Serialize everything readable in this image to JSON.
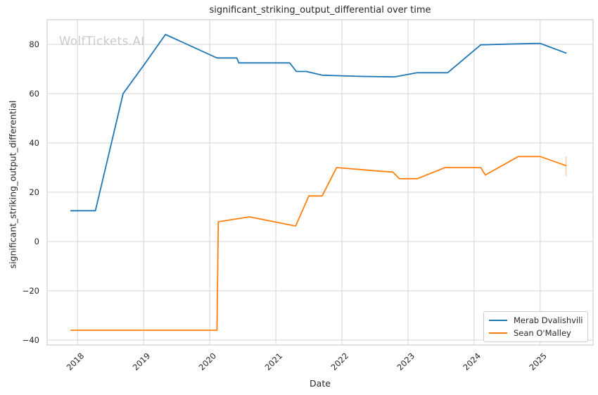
{
  "watermark": "WolfTickets.AI",
  "colors": {
    "grid": "#d5d5d5",
    "spine": "#cfcfcf",
    "text": "#262626",
    "watermark": "#c9c9c9",
    "legend_border": "#cccccc"
  },
  "chart_data": {
    "type": "line",
    "title": "significant_striking_output_differential over time",
    "xlabel": "Date",
    "ylabel": "significant_striking_output_differential",
    "x_tick_values": [
      2018,
      2019,
      2020,
      2021,
      2022,
      2023,
      2024,
      2025
    ],
    "x_tick_labels": [
      "2018",
      "2019",
      "2020",
      "2021",
      "2022",
      "2023",
      "2024",
      "2025"
    ],
    "y_tick_values": [
      -40,
      -20,
      0,
      20,
      40,
      60,
      80
    ],
    "y_tick_labels": [
      "−40",
      "−20",
      "0",
      "20",
      "40",
      "60",
      "80"
    ],
    "xlim": [
      2017.54,
      2025.8
    ],
    "ylim": [
      -42,
      90
    ],
    "grid": true,
    "legend_position": "lower right",
    "series": [
      {
        "name": "Merab Dvalishvili",
        "color": "#1f77b4",
        "x": [
          2017.9,
          2018.27,
          2018.69,
          2019.0,
          2019.33,
          2020.11,
          2020.41,
          2020.44,
          2021.21,
          2021.31,
          2021.46,
          2021.7,
          2022.3,
          2022.79,
          2023.14,
          2023.6,
          2024.1,
          2024.65,
          2025.0,
          2025.39
        ],
        "y": [
          12.5,
          12.5,
          60,
          71.5,
          84,
          74.5,
          74.5,
          72.5,
          72.5,
          69,
          69,
          67.5,
          67,
          66.8,
          68.5,
          68.5,
          79.8,
          80.2,
          80.4,
          76.5
        ]
      },
      {
        "name": "Sean O'Malley",
        "color": "#ff7f0e",
        "x": [
          2017.9,
          2020.11,
          2020.13,
          2020.6,
          2021.3,
          2021.5,
          2021.7,
          2021.92,
          2022.6,
          2022.77,
          2022.87,
          2023.14,
          2023.56,
          2024.1,
          2024.17,
          2024.67,
          2025.0,
          2025.39
        ],
        "y": [
          -36,
          -36,
          8,
          10,
          6.3,
          18.5,
          18.5,
          30,
          28.5,
          28.2,
          25.5,
          25.5,
          30,
          30,
          27,
          34.5,
          34.5,
          30.8
        ],
        "end_whisker": {
          "x": 2025.39,
          "y_min": 26.5,
          "y_max": 34.5
        }
      }
    ]
  }
}
